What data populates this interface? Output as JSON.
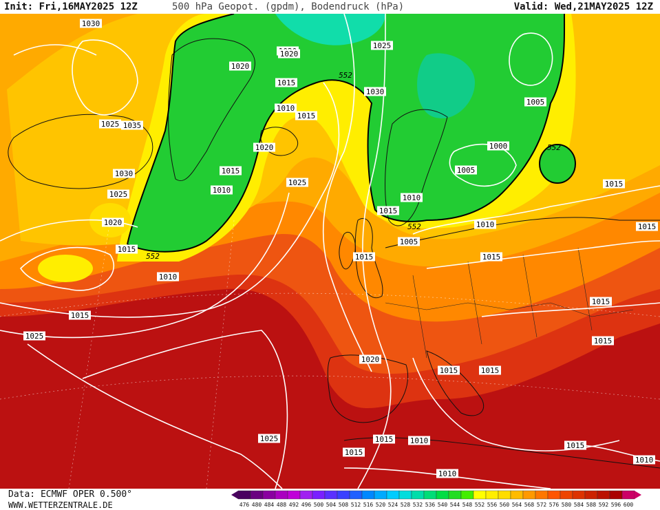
{
  "header": {
    "init": "Init: Fri,16MAY2025 12Z",
    "title": "500 hPa Geopot. (gpdm), Bodendruck (hPa)",
    "valid": "Valid: Wed,21MAY2025 12Z"
  },
  "footer": {
    "data_source": "Data: ECMWF OPER 0.500°",
    "website": "WWW.WETTERZENTRALE.DE"
  },
  "colors": {
    "green": "#22cc33",
    "cyan_green": "#11ddaa",
    "yellow": "#ffff00",
    "gold": "#ffcc00",
    "orange": "#ff9900",
    "dark_orange": "#ee6600",
    "red_orange": "#dd3311",
    "dark_red": "#bb1111"
  },
  "legend": {
    "values": [
      "476",
      "480",
      "484",
      "488",
      "492",
      "496",
      "500",
      "504",
      "508",
      "512",
      "516",
      "520",
      "524",
      "528",
      "532",
      "536",
      "540",
      "544",
      "548",
      "552",
      "556",
      "560",
      "564",
      "568",
      "572",
      "576",
      "580",
      "584",
      "588",
      "592",
      "596",
      "600"
    ],
    "colors": [
      "#4a0060",
      "#6a0080",
      "#8a00a0",
      "#aa00c0",
      "#c000d8",
      "#a020f0",
      "#7a20ff",
      "#5a30ff",
      "#3a40ff",
      "#2060ff",
      "#0088ff",
      "#00aaff",
      "#00ccff",
      "#00dddd",
      "#00ddaa",
      "#00dd77",
      "#00dd44",
      "#22dd22",
      "#44ee00",
      "#ffff00",
      "#ffee00",
      "#ffdd00",
      "#ffbb00",
      "#ff9900",
      "#ff7700",
      "#ff5500",
      "#ee4400",
      "#dd3300",
      "#cc2200",
      "#bb1100",
      "#aa0000",
      "#cc0066"
    ]
  },
  "isobars": [
    "1030",
    "1025",
    "1035",
    "1030",
    "1025",
    "1020",
    "1015",
    "1010",
    "1010",
    "1015",
    "1025",
    "1020",
    "1020",
    "1015",
    "1015",
    "1010",
    "1025",
    "1015",
    "1020",
    "1015",
    "1015",
    "1015",
    "1015",
    "1025",
    "1015",
    "1010",
    "1010",
    "1015",
    "1010",
    "1020",
    "1020",
    "1015",
    "1025",
    "1030",
    "1000",
    "1005",
    "1005",
    "1005",
    "1010",
    "1015",
    "1015",
    "1015",
    "1015",
    "1015",
    "1010"
  ],
  "geopot_labels": [
    "552",
    "552",
    "552",
    "552"
  ]
}
